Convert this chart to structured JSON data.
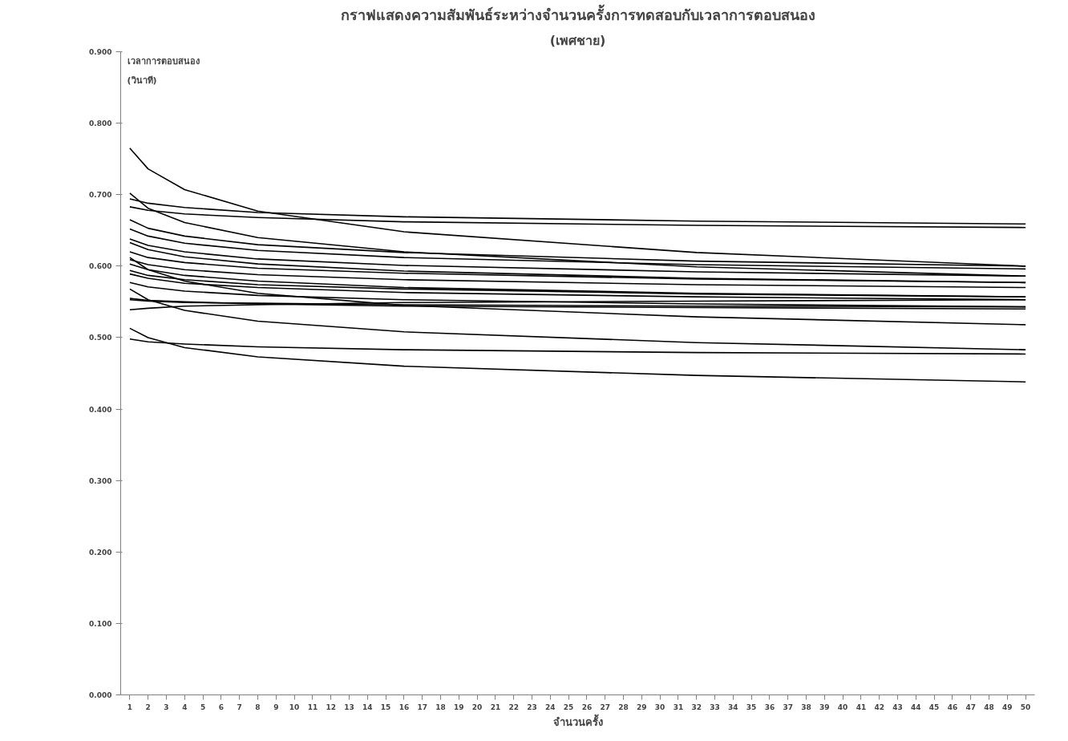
{
  "chart_data": {
    "type": "line",
    "title": "กราฟแสดงความสัมพันธ์ระหว่างจำนวนครั้งการทดสอบกับเวลาการตอบสนอง",
    "subtitle": "(เพศชาย)",
    "xlabel": "จำนวนครั้ง",
    "ylabel": "เวลาการตอบสนอง\n(วินาที)",
    "x": [
      1,
      2,
      4,
      8,
      16,
      32,
      50
    ],
    "xlim": [
      0.5,
      50.5
    ],
    "xticks": [
      1,
      2,
      3,
      4,
      5,
      6,
      7,
      8,
      9,
      10,
      11,
      12,
      13,
      14,
      15,
      16,
      17,
      18,
      19,
      20,
      21,
      22,
      23,
      24,
      25,
      26,
      27,
      28,
      29,
      30,
      31,
      32,
      33,
      34,
      35,
      36,
      37,
      38,
      39,
      40,
      41,
      42,
      43,
      44,
      45,
      46,
      47,
      48,
      49,
      50
    ],
    "ylim": [
      0,
      0.9
    ],
    "yticks": [
      {
        "value": 0,
        "label": "0.000"
      },
      {
        "value": 0.1,
        "label": "0.100"
      },
      {
        "value": 0.2,
        "label": "0.200"
      },
      {
        "value": 0.3,
        "label": "0.300"
      },
      {
        "value": 0.4,
        "label": "0.400"
      },
      {
        "value": 0.5,
        "label": "0.500"
      },
      {
        "value": 0.6,
        "label": "0.600"
      },
      {
        "value": 0.7,
        "label": "0.700"
      },
      {
        "value": 0.8,
        "label": "0.800"
      },
      {
        "value": 0.9,
        "label": "0.900"
      }
    ],
    "grid": false,
    "marker": "none",
    "line_style": "solid",
    "series": [
      {
        "color": "#000000",
        "values": [
          0.765,
          0.736,
          0.707,
          0.677,
          0.648,
          0.619,
          0.6
        ]
      },
      {
        "color": "#000000",
        "values": [
          0.702,
          0.681,
          0.661,
          0.64,
          0.62,
          0.599,
          0.586
        ]
      },
      {
        "color": "#000000",
        "values": [
          0.694,
          0.688,
          0.682,
          0.675,
          0.669,
          0.663,
          0.659
        ]
      },
      {
        "color": "#000000",
        "values": [
          0.683,
          0.678,
          0.673,
          0.668,
          0.662,
          0.657,
          0.654
        ]
      },
      {
        "color": "#000000",
        "values": [
          0.665,
          0.653,
          0.642,
          0.63,
          0.619,
          0.607,
          0.6
        ]
      },
      {
        "color": "#000000",
        "values": [
          0.652,
          0.642,
          0.632,
          0.622,
          0.612,
          0.602,
          0.596
        ]
      },
      {
        "color": "#000000",
        "values": [
          0.638,
          0.629,
          0.62,
          0.61,
          0.601,
          0.592,
          0.586
        ]
      },
      {
        "color": "#000000",
        "values": [
          0.633,
          0.623,
          0.613,
          0.603,
          0.593,
          0.583,
          0.577
        ]
      },
      {
        "color": "#000000",
        "values": [
          0.62,
          0.612,
          0.605,
          0.597,
          0.59,
          0.582,
          0.577
        ]
      },
      {
        "color": "#000000",
        "values": [
          0.612,
          0.595,
          0.579,
          0.562,
          0.545,
          0.529,
          0.518
        ]
      },
      {
        "color": "#000000",
        "values": [
          0.609,
          0.602,
          0.595,
          0.588,
          0.581,
          0.574,
          0.57
        ]
      },
      {
        "color": "#000000",
        "values": [
          0.603,
          0.595,
          0.587,
          0.579,
          0.57,
          0.562,
          0.557
        ]
      },
      {
        "color": "#000000",
        "values": [
          0.594,
          0.587,
          0.581,
          0.574,
          0.568,
          0.561,
          0.557
        ]
      },
      {
        "color": "#000000",
        "values": [
          0.589,
          0.583,
          0.576,
          0.57,
          0.563,
          0.557,
          0.553
        ]
      },
      {
        "color": "#000000",
        "values": [
          0.577,
          0.571,
          0.565,
          0.559,
          0.553,
          0.547,
          0.543
        ]
      },
      {
        "color": "#000000",
        "values": [
          0.568,
          0.553,
          0.538,
          0.523,
          0.508,
          0.493,
          0.483
        ]
      },
      {
        "color": "#000000",
        "values": [
          0.555,
          0.552,
          0.55,
          0.547,
          0.544,
          0.542,
          0.54
        ]
      },
      {
        "color": "#000000",
        "values": [
          0.553,
          0.551,
          0.549,
          0.548,
          0.546,
          0.544,
          0.543
        ]
      },
      {
        "color": "#000000",
        "values": [
          0.539,
          0.541,
          0.544,
          0.546,
          0.549,
          0.551,
          0.553
        ]
      },
      {
        "color": "#000000",
        "values": [
          0.513,
          0.5,
          0.486,
          0.473,
          0.46,
          0.447,
          0.438
        ]
      },
      {
        "color": "#000000",
        "values": [
          0.498,
          0.494,
          0.491,
          0.487,
          0.483,
          0.479,
          0.477
        ]
      }
    ]
  }
}
